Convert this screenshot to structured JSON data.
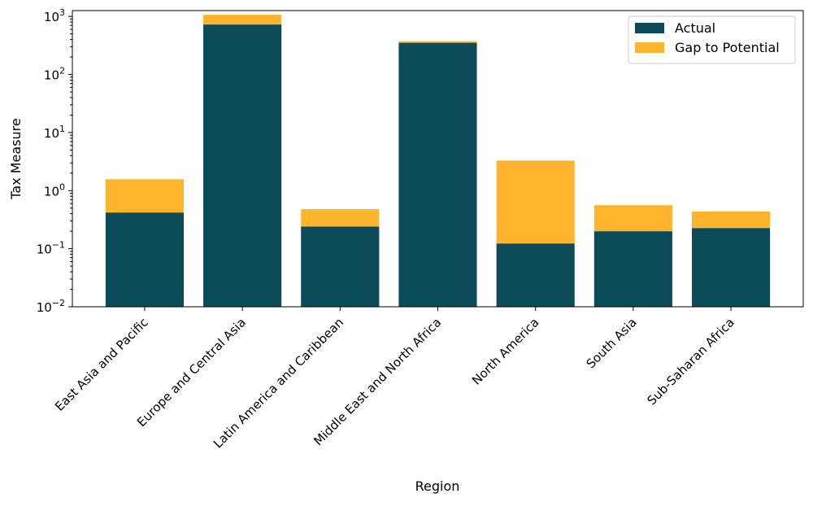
{
  "chart_data": {
    "type": "bar",
    "stacked": true,
    "title": "",
    "xlabel": "Region",
    "ylabel": "Tax Measure",
    "yscale": "log",
    "ylim": [
      0.01,
      1259
    ],
    "grid": false,
    "legend_placement": "top-right",
    "categories": [
      "East Asia and Pacific",
      "Europe and Central Asia",
      "Latin America and Caribbean",
      "Middle East and North Africa",
      "North America",
      "South Asia",
      "Sub-Saharan Africa"
    ],
    "series": [
      {
        "name": "Actual",
        "color": "#0c4c5a",
        "values": [
          0.42,
          725,
          0.24,
          351,
          0.123,
          0.2,
          0.227
        ]
      },
      {
        "name": "Gap to Potential",
        "color": "#ffb42e",
        "values": [
          1.15,
          342,
          0.24,
          23,
          3.17,
          0.36,
          0.21
        ]
      }
    ],
    "yticks": [
      {
        "value": 0.01,
        "base": "10",
        "exp": "−2"
      },
      {
        "value": 0.1,
        "base": "10",
        "exp": "−1"
      },
      {
        "value": 1,
        "base": "10",
        "exp": "0"
      },
      {
        "value": 10,
        "base": "10",
        "exp": "1"
      },
      {
        "value": 100,
        "base": "10",
        "exp": "2"
      },
      {
        "value": 1000,
        "base": "10",
        "exp": "3"
      }
    ]
  }
}
